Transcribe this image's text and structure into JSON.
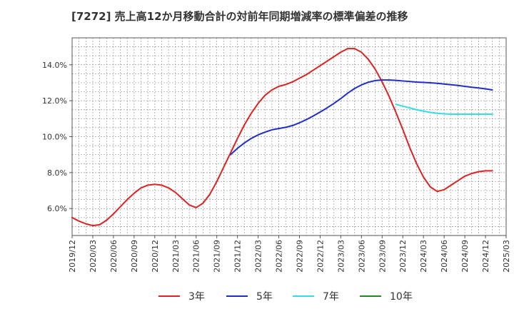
{
  "chart_data": {
    "type": "line",
    "title": "[7272]  売上高12か月移動合計の対前年同期増減率の標準偏差の推移",
    "xlabel": "",
    "ylabel": "",
    "ylim": [
      4.5,
      15.5
    ],
    "y_ticks": [
      6.0,
      8.0,
      10.0,
      12.0,
      14.0
    ],
    "y_tick_labels": [
      "6.0%",
      "8.0%",
      "10.0%",
      "12.0%",
      "14.0%"
    ],
    "x_tick_labels": [
      "2019/12",
      "2020/03",
      "2020/06",
      "2020/09",
      "2020/12",
      "2021/03",
      "2021/06",
      "2021/09",
      "2021/12",
      "2022/03",
      "2022/06",
      "2022/09",
      "2022/12",
      "2023/03",
      "2023/06",
      "2023/09",
      "2023/12",
      "2024/03",
      "2024/06",
      "2024/09",
      "2024/12",
      "2025/03"
    ],
    "grid": true,
    "legend_position": "bottom",
    "series": [
      {
        "name": "3年",
        "color": "#dd2222",
        "points": [
          [
            "2019/12",
            5.5
          ],
          [
            "2020/01",
            5.3
          ],
          [
            "2020/02",
            5.15
          ],
          [
            "2020/03",
            5.05
          ],
          [
            "2020/04",
            5.1
          ],
          [
            "2020/05",
            5.35
          ],
          [
            "2020/06",
            5.7
          ],
          [
            "2020/07",
            6.1
          ],
          [
            "2020/08",
            6.5
          ],
          [
            "2020/09",
            6.85
          ],
          [
            "2020/10",
            7.15
          ],
          [
            "2020/11",
            7.3
          ],
          [
            "2020/12",
            7.35
          ],
          [
            "2021/01",
            7.3
          ],
          [
            "2021/02",
            7.15
          ],
          [
            "2021/03",
            6.9
          ],
          [
            "2021/04",
            6.55
          ],
          [
            "2021/05",
            6.2
          ],
          [
            "2021/06",
            6.05
          ],
          [
            "2021/07",
            6.3
          ],
          [
            "2021/08",
            6.8
          ],
          [
            "2021/09",
            7.5
          ],
          [
            "2021/10",
            8.3
          ],
          [
            "2021/11",
            9.1
          ],
          [
            "2021/12",
            9.9
          ],
          [
            "2022/01",
            10.65
          ],
          [
            "2022/02",
            11.3
          ],
          [
            "2022/03",
            11.85
          ],
          [
            "2022/04",
            12.3
          ],
          [
            "2022/05",
            12.6
          ],
          [
            "2022/06",
            12.8
          ],
          [
            "2022/07",
            12.9
          ],
          [
            "2022/08",
            13.05
          ],
          [
            "2022/09",
            13.25
          ],
          [
            "2022/10",
            13.45
          ],
          [
            "2022/11",
            13.7
          ],
          [
            "2022/12",
            13.95
          ],
          [
            "2023/01",
            14.2
          ],
          [
            "2023/02",
            14.45
          ],
          [
            "2023/03",
            14.7
          ],
          [
            "2023/04",
            14.9
          ],
          [
            "2023/05",
            14.9
          ],
          [
            "2023/06",
            14.7
          ],
          [
            "2023/07",
            14.3
          ],
          [
            "2023/08",
            13.75
          ],
          [
            "2023/09",
            13.05
          ],
          [
            "2023/10",
            12.25
          ],
          [
            "2023/11",
            11.35
          ],
          [
            "2023/12",
            10.4
          ],
          [
            "2024/01",
            9.4
          ],
          [
            "2024/02",
            8.5
          ],
          [
            "2024/03",
            7.75
          ],
          [
            "2024/04",
            7.2
          ],
          [
            "2024/05",
            6.95
          ],
          [
            "2024/06",
            7.05
          ],
          [
            "2024/07",
            7.3
          ],
          [
            "2024/08",
            7.55
          ],
          [
            "2024/09",
            7.8
          ],
          [
            "2024/10",
            7.95
          ],
          [
            "2024/11",
            8.05
          ],
          [
            "2024/12",
            8.1
          ],
          [
            "2025/01",
            8.1
          ]
        ]
      },
      {
        "name": "5年",
        "color": "#1f2ec8",
        "points": [
          [
            "2021/11",
            9.0
          ],
          [
            "2021/12",
            9.35
          ],
          [
            "2022/01",
            9.65
          ],
          [
            "2022/02",
            9.9
          ],
          [
            "2022/03",
            10.1
          ],
          [
            "2022/04",
            10.25
          ],
          [
            "2022/05",
            10.38
          ],
          [
            "2022/06",
            10.45
          ],
          [
            "2022/07",
            10.52
          ],
          [
            "2022/08",
            10.62
          ],
          [
            "2022/09",
            10.77
          ],
          [
            "2022/10",
            10.95
          ],
          [
            "2022/11",
            11.15
          ],
          [
            "2022/12",
            11.37
          ],
          [
            "2023/01",
            11.6
          ],
          [
            "2023/02",
            11.85
          ],
          [
            "2023/03",
            12.12
          ],
          [
            "2023/04",
            12.42
          ],
          [
            "2023/05",
            12.68
          ],
          [
            "2023/06",
            12.88
          ],
          [
            "2023/07",
            13.03
          ],
          [
            "2023/08",
            13.12
          ],
          [
            "2023/09",
            13.15
          ],
          [
            "2023/10",
            13.15
          ],
          [
            "2023/11",
            13.13
          ],
          [
            "2023/12",
            13.1
          ],
          [
            "2024/01",
            13.07
          ],
          [
            "2024/02",
            13.04
          ],
          [
            "2024/03",
            13.02
          ],
          [
            "2024/04",
            13.0
          ],
          [
            "2024/05",
            12.97
          ],
          [
            "2024/06",
            12.93
          ],
          [
            "2024/07",
            12.89
          ],
          [
            "2024/08",
            12.85
          ],
          [
            "2024/09",
            12.8
          ],
          [
            "2024/10",
            12.75
          ],
          [
            "2024/11",
            12.71
          ],
          [
            "2024/12",
            12.66
          ],
          [
            "2025/01",
            12.6
          ]
        ]
      },
      {
        "name": "7年",
        "color": "#33dde8",
        "points": [
          [
            "2023/11",
            11.8
          ],
          [
            "2023/12",
            11.7
          ],
          [
            "2024/01",
            11.6
          ],
          [
            "2024/02",
            11.5
          ],
          [
            "2024/03",
            11.42
          ],
          [
            "2024/04",
            11.35
          ],
          [
            "2024/05",
            11.3
          ],
          [
            "2024/06",
            11.27
          ],
          [
            "2024/07",
            11.25
          ],
          [
            "2024/08",
            11.25
          ],
          [
            "2024/09",
            11.25
          ],
          [
            "2024/10",
            11.25
          ],
          [
            "2024/11",
            11.25
          ],
          [
            "2024/12",
            11.25
          ],
          [
            "2025/01",
            11.25
          ]
        ]
      },
      {
        "name": "10年",
        "color": "#228822",
        "points": []
      }
    ]
  }
}
